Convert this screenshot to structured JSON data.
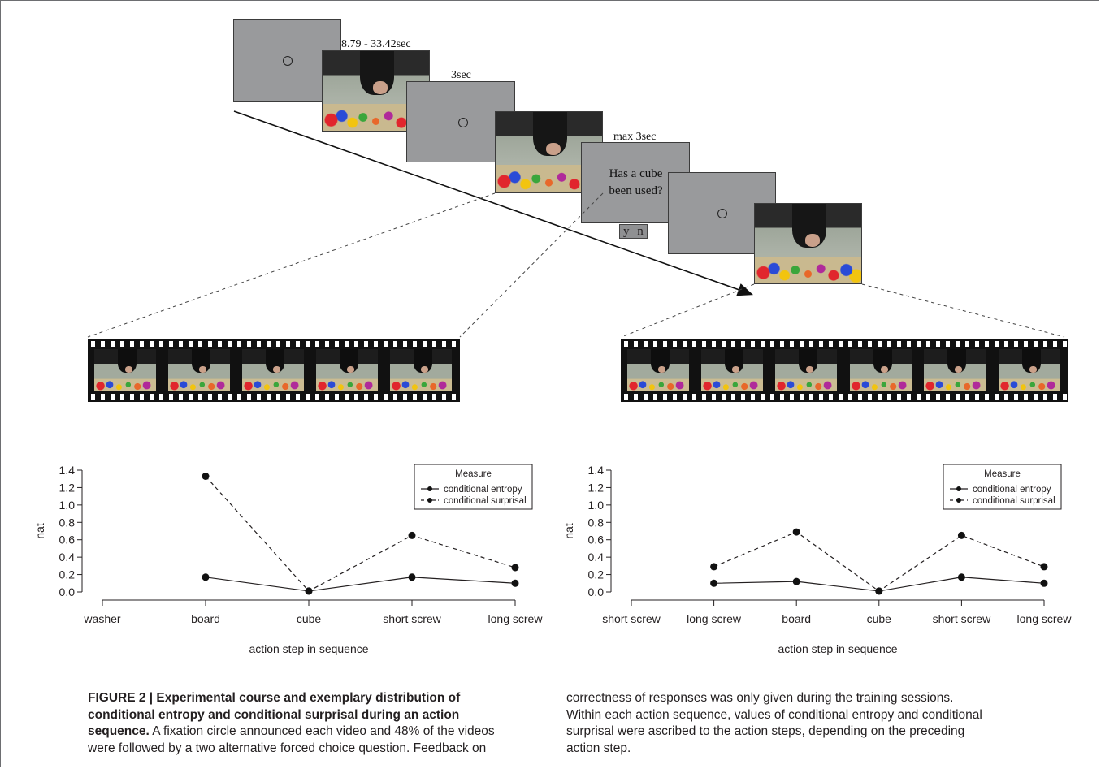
{
  "timeline": {
    "timing_video1": "8.79 - 33.42sec",
    "timing_fixation2": "3sec",
    "timing_question": "max 3sec",
    "question_text": "Has a cube been used?",
    "question_line1": "Has a cube",
    "question_line2": "been used?",
    "response_options": "y n"
  },
  "chart_data": [
    {
      "type": "line",
      "categories": [
        "washer",
        "board",
        "cube",
        "short screw",
        "long screw"
      ],
      "series": [
        {
          "name": "conditional entropy",
          "style": "solid",
          "values": [
            null,
            0.17,
            0.01,
            0.17,
            0.1
          ]
        },
        {
          "name": "conditional surprisal",
          "style": "dashed",
          "values": [
            null,
            1.33,
            0.01,
            0.65,
            0.28
          ]
        }
      ],
      "xlabel": "action step in sequence",
      "ylabel": "nat",
      "yticks": [
        "0.0",
        "0.2",
        "0.4",
        "0.6",
        "0.8",
        "1.0",
        "1.2",
        "1.4"
      ],
      "ylim": [
        0,
        1.4
      ],
      "legend_title": "Measure",
      "legend_position": "top-right",
      "grid": false
    },
    {
      "type": "line",
      "categories": [
        "short screw",
        "long screw",
        "board",
        "cube",
        "short screw",
        "long screw"
      ],
      "series": [
        {
          "name": "conditional entropy",
          "style": "solid",
          "values": [
            null,
            0.1,
            0.12,
            0.01,
            0.17,
            0.1
          ]
        },
        {
          "name": "conditional surprisal",
          "style": "dashed",
          "values": [
            null,
            0.29,
            0.69,
            0.01,
            0.65,
            0.29
          ]
        }
      ],
      "xlabel": "action step in sequence",
      "ylabel": "nat",
      "yticks": [
        "0.0",
        "0.2",
        "0.4",
        "0.6",
        "0.8",
        "1.0",
        "1.2",
        "1.4"
      ],
      "ylim": [
        0,
        1.4
      ],
      "legend_title": "Measure",
      "legend_position": "top-right",
      "grid": false
    }
  ],
  "caption": {
    "label": "FIGURE 2 | Experimental course and exemplary distribution of",
    "bold_line2": "conditional entropy and conditional surprisal during an action",
    "bold_line3_start": "sequence.",
    "line3_rest": " A fixation circle announced each video and 48% of the videos",
    "line4": "were followed by a two alternative forced choice question. Feedback on",
    "right_line1": "correctness of responses was only given during the training sessions.",
    "right_line2": "Within each action sequence, values of conditional entropy and conditional",
    "right_line3": "surprisal were ascribed to the action steps, depending on the preceding",
    "right_line4": "action step."
  },
  "colors": {
    "screen_gray": "#999a9c",
    "frame_border": "#6d6e71",
    "text": "#231f20"
  }
}
